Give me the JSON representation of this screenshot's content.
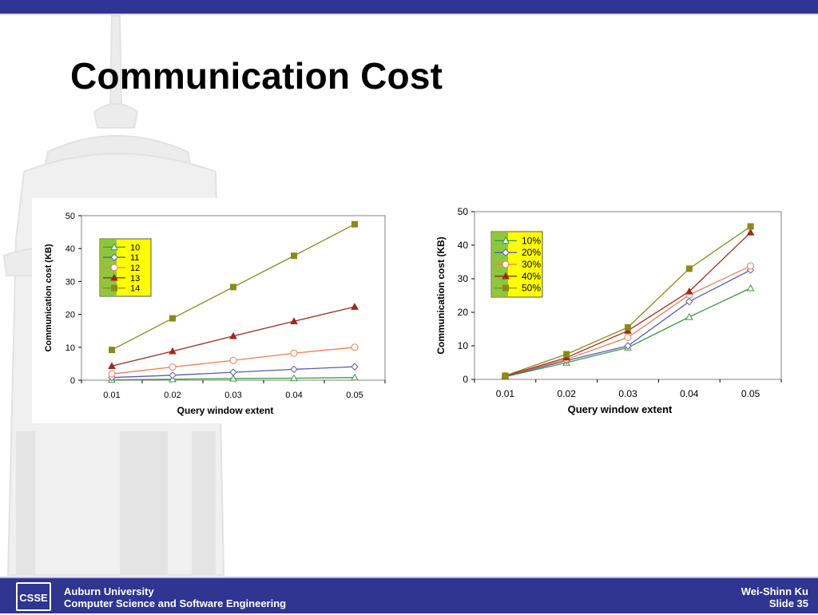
{
  "slide": {
    "title": "Communication Cost",
    "colors": {
      "header_bar": "#2f3590",
      "footer_bar": "#2f3590",
      "watermark": "#e7e7e7"
    }
  },
  "footer": {
    "institution": "Auburn University",
    "department": "Computer Science and Software Engineering",
    "author": "Wei-Shinn Ku",
    "slide_number": "Slide 35",
    "logo_text": "CSSE"
  },
  "chart_data": [
    {
      "type": "line",
      "xlabel": "Query window extent",
      "ylabel": "Communication cost (KB)",
      "x": [
        "0.01",
        "0.02",
        "0.03",
        "0.04",
        "0.05"
      ],
      "ylim": [
        0,
        50
      ],
      "yticks": [
        0,
        10,
        20,
        30,
        40,
        50
      ],
      "grid": false,
      "legend_position": "top-left",
      "legend_background": "#ffff00",
      "series": [
        {
          "name": "10",
          "color": "#3a9a3a",
          "marker": "triangle-open",
          "values": [
            0.1,
            0.3,
            0.5,
            0.6,
            0.8
          ]
        },
        {
          "name": "11",
          "color": "#5a5ab8",
          "marker": "diamond-open",
          "values": [
            0.8,
            1.5,
            2.4,
            3.3,
            4.1
          ]
        },
        {
          "name": "12",
          "color": "#f07c50",
          "marker": "circle-open",
          "values": [
            1.9,
            4.0,
            6.0,
            8.2,
            10.0
          ]
        },
        {
          "name": "13",
          "color": "#9e2a1e",
          "marker": "triangle-filled",
          "values": [
            4.3,
            8.8,
            13.4,
            17.9,
            22.3
          ]
        },
        {
          "name": "14",
          "color": "#8a8a18",
          "marker": "square-filled",
          "values": [
            9.2,
            18.8,
            28.3,
            37.8,
            47.4
          ]
        }
      ]
    },
    {
      "type": "line",
      "xlabel": "Query window extent",
      "ylabel": "Communication cost (KB)",
      "x": [
        "0.01",
        "0.02",
        "0.03",
        "0.04",
        "0.05"
      ],
      "ylim": [
        0,
        50
      ],
      "yticks": [
        0,
        10,
        20,
        30,
        40,
        50
      ],
      "grid": false,
      "legend_position": "top-left",
      "legend_background": "#ffff00",
      "series": [
        {
          "name": "10%",
          "color": "#3a9a3a",
          "marker": "triangle-open",
          "values": [
            0.8,
            5.0,
            9.5,
            18.6,
            27.2
          ]
        },
        {
          "name": "20%",
          "color": "#5a5ab8",
          "marker": "diamond-open",
          "values": [
            0.9,
            5.6,
            10.0,
            23.2,
            32.6
          ]
        },
        {
          "name": "30%",
          "color": "#f07c50",
          "marker": "circle-open",
          "values": [
            1.0,
            6.0,
            12.5,
            25.2,
            33.8
          ]
        },
        {
          "name": "40%",
          "color": "#9e2a1e",
          "marker": "triangle-filled",
          "values": [
            1.0,
            6.5,
            14.5,
            26.2,
            43.8
          ]
        },
        {
          "name": "50%",
          "color": "#8a8a18",
          "marker": "square-filled",
          "values": [
            1.1,
            7.5,
            15.5,
            33.0,
            45.6
          ]
        }
      ]
    }
  ]
}
